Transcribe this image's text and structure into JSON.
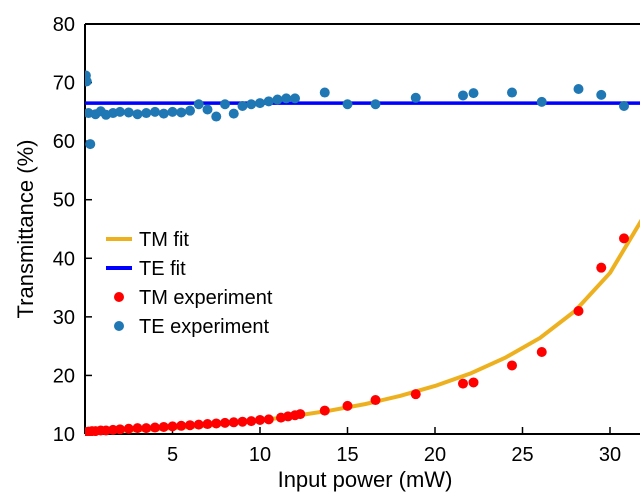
{
  "chart_data": {
    "type": "scatter",
    "xlabel": "Input power (mW)",
    "ylabel": "Transmittance (%)",
    "xlim": [
      0,
      32
    ],
    "ylim": [
      10,
      80
    ],
    "x_ticks": [
      "5",
      "10",
      "15",
      "20",
      "25",
      "30"
    ],
    "y_ticks": [
      "10",
      "20",
      "30",
      "40",
      "50",
      "60",
      "70",
      "80"
    ],
    "grid": false,
    "legend_position": "center-left",
    "series": [
      {
        "name": "TM fit",
        "kind": "line",
        "color": "#EDB120",
        "x": [
          0,
          2,
          4,
          6,
          8,
          10,
          12,
          14,
          16,
          18,
          20,
          22,
          24,
          26,
          28,
          30,
          32
        ],
        "y": [
          10.3,
          10.5,
          10.8,
          11.2,
          11.7,
          12.3,
          13.1,
          14.0,
          15.1,
          16.5,
          18.2,
          20.3,
          23.0,
          26.4,
          31.0,
          37.5,
          47.5
        ]
      },
      {
        "name": "TE fit",
        "kind": "line",
        "color": "#0000FF",
        "x": [
          0,
          32
        ],
        "y": [
          66.5,
          66.5
        ]
      },
      {
        "name": "TM experiment",
        "kind": "scatter",
        "color": "#FF0000",
        "x": [
          0.05,
          0.2,
          0.4,
          0.6,
          0.9,
          1.2,
          1.6,
          2.0,
          2.5,
          3.0,
          3.5,
          4.0,
          4.5,
          5.0,
          5.5,
          6.0,
          6.5,
          7.0,
          7.5,
          8.0,
          8.5,
          9.0,
          9.5,
          10.0,
          10.5,
          11.2,
          11.6,
          12.0,
          12.3,
          13.7,
          15.0,
          16.6,
          18.9,
          21.6,
          22.2,
          24.4,
          26.1,
          28.2,
          29.5,
          30.8,
          32.0
        ],
        "y": [
          10.3,
          10.4,
          10.5,
          10.5,
          10.6,
          10.6,
          10.7,
          10.8,
          10.9,
          11.0,
          11.0,
          11.1,
          11.2,
          11.3,
          11.4,
          11.5,
          11.6,
          11.7,
          11.8,
          11.9,
          12.0,
          12.1,
          12.2,
          12.4,
          12.5,
          12.8,
          13.0,
          13.2,
          13.4,
          14.0,
          14.8,
          15.8,
          16.8,
          18.6,
          18.8,
          21.7,
          24.0,
          31.0,
          38.4,
          43.4,
          48.5
        ]
      },
      {
        "name": "TE experiment",
        "kind": "scatter",
        "color": "#1F77B4",
        "x": [
          0.05,
          0.1,
          0.2,
          0.3,
          0.6,
          0.9,
          1.2,
          1.6,
          2.0,
          2.5,
          3.0,
          3.5,
          4.0,
          4.5,
          5.0,
          5.5,
          6.0,
          6.5,
          7.0,
          7.5,
          8.0,
          8.5,
          9.0,
          9.5,
          10.0,
          10.5,
          11.0,
          11.5,
          12.0,
          13.7,
          15.0,
          16.6,
          18.9,
          21.6,
          22.2,
          24.4,
          26.1,
          28.2,
          29.5,
          30.8,
          32.0
        ],
        "y": [
          71.2,
          70.2,
          64.8,
          59.5,
          64.6,
          65.1,
          64.5,
          64.8,
          65.0,
          64.9,
          64.6,
          64.8,
          65.0,
          64.7,
          65.0,
          64.9,
          65.2,
          66.3,
          65.4,
          64.2,
          66.3,
          64.7,
          66.0,
          66.3,
          66.5,
          66.8,
          67.1,
          67.3,
          67.3,
          68.3,
          66.3,
          66.3,
          67.4,
          67.8,
          68.2,
          68.3,
          66.7,
          68.9,
          67.9,
          66.0,
          64.8
        ]
      }
    ]
  }
}
